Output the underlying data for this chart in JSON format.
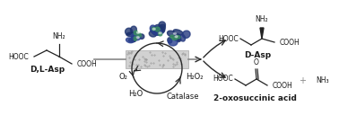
{
  "bg_color": "#ffffff",
  "text_color": "#1a1a1a",
  "arrow_color": "#2a2a2a",
  "dl_asp_label": "D,L-Asp",
  "d_asp_label": "D-Asp",
  "oxosuccinic_label": "2-oxosuccinic acid",
  "o2_label": "O₂",
  "h2o2_label": "H₂O₂",
  "h2o_label": "H₂O",
  "catalase_label": "Catalase",
  "nh3_label": "NH₃",
  "plus_label": "+",
  "fig_width": 3.78,
  "fig_height": 1.38,
  "dpi": 100
}
